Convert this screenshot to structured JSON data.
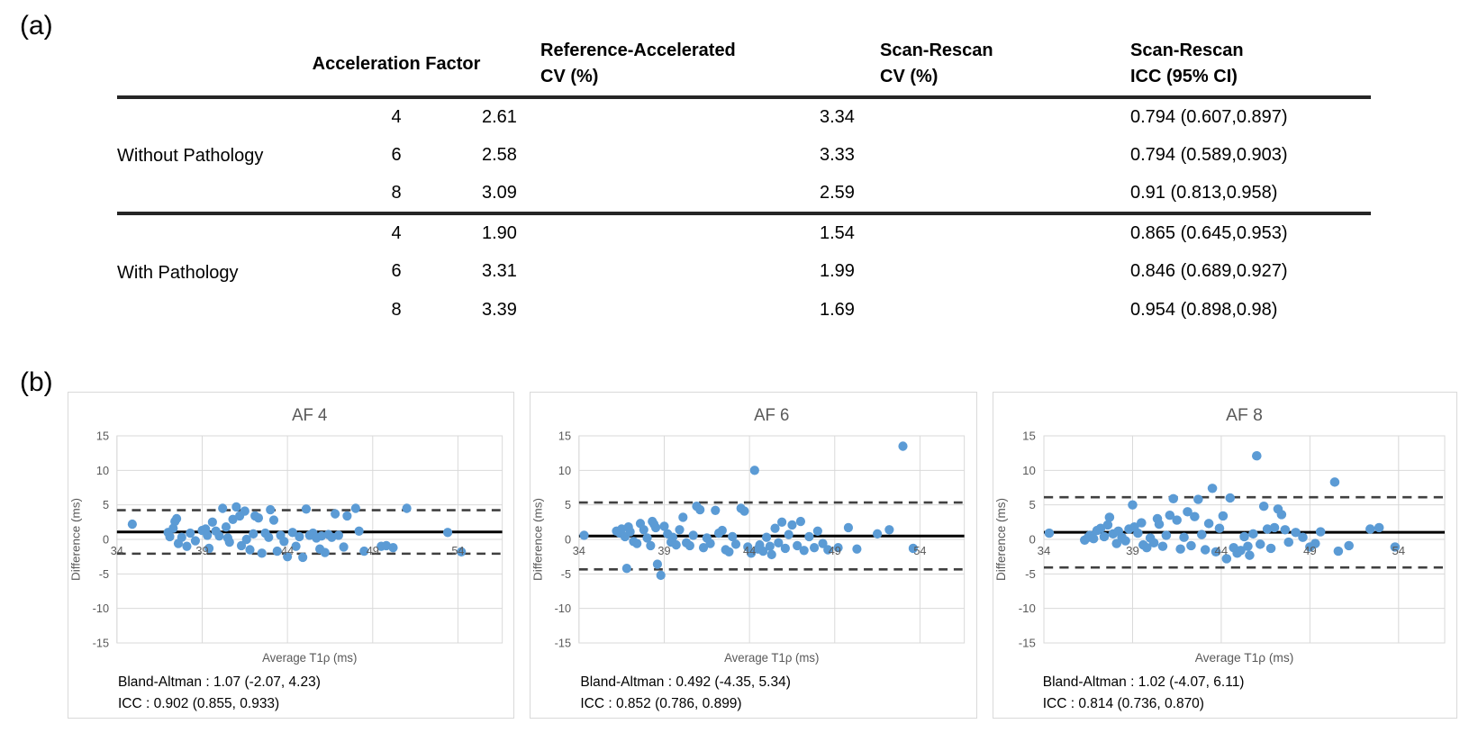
{
  "figure": {
    "panel_a_label": "(a)",
    "panel_b_label": "(b)"
  },
  "colors": {
    "marker": "#5b9bd5",
    "mean_line": "#000000",
    "loa_line": "#404040",
    "grid": "#d9d9d9",
    "axis_text": "#595959",
    "table_rule": "#262626",
    "panel_border": "#d9d9d9"
  },
  "table": {
    "columns": [
      {
        "line1": "Acceleration Factor",
        "line2": ""
      },
      {
        "line1": "Reference-Accelerated",
        "line2": "CV (%)"
      },
      {
        "line1": "Scan-Rescan",
        "line2": "CV (%)"
      },
      {
        "line1": "Scan-Rescan",
        "line2": "ICC (95% CI)"
      }
    ],
    "groups": [
      {
        "label": "Without Pathology",
        "rows": [
          {
            "af": "4",
            "ref_cv": "2.61",
            "sr_cv": "3.34",
            "icc": "0.794 (0.607,0.897)"
          },
          {
            "af": "6",
            "ref_cv": "2.58",
            "sr_cv": "3.33",
            "icc": "0.794 (0.589,0.903)"
          },
          {
            "af": "8",
            "ref_cv": "3.09",
            "sr_cv": "2.59",
            "icc": "0.91 (0.813,0.958)"
          }
        ]
      },
      {
        "label": "With Pathology",
        "rows": [
          {
            "af": "4",
            "ref_cv": "1.90",
            "sr_cv": "1.54",
            "icc": "0.865 (0.645,0.953)"
          },
          {
            "af": "6",
            "ref_cv": "3.31",
            "sr_cv": "1.99",
            "icc": "0.846 (0.689,0.927)"
          },
          {
            "af": "8",
            "ref_cv": "3.39",
            "sr_cv": "1.69",
            "icc": "0.954 (0.898,0.98)"
          }
        ]
      }
    ]
  },
  "chart_data": [
    {
      "type": "scatter",
      "title": "AF 4",
      "xlabel": "Average T1ρ (ms)",
      "ylabel": "Difference (ms)",
      "xlim": [
        34,
        56.6
      ],
      "ylim": [
        -15,
        15
      ],
      "xticks": [
        34,
        39,
        44,
        49,
        54
      ],
      "yticks": [
        15,
        10,
        5,
        0,
        -5,
        -10,
        -15
      ],
      "grid": true,
      "mean_line": 1.07,
      "loa_upper": 4.23,
      "loa_lower": -2.07,
      "annotation_line1": "Bland-Altman : 1.07 (-2.07, 4.23)",
      "annotation_line2": "ICC : 0.902 (0.855, 0.933)",
      "points": [
        [
          34.9,
          2.2
        ],
        [
          37.0,
          1.0
        ],
        [
          37.1,
          0.4
        ],
        [
          37.3,
          1.6
        ],
        [
          37.4,
          2.6
        ],
        [
          37.5,
          3.0
        ],
        [
          37.6,
          -0.6
        ],
        [
          37.8,
          0.3
        ],
        [
          38.1,
          -1.0
        ],
        [
          38.3,
          0.9
        ],
        [
          38.6,
          -0.2
        ],
        [
          39.0,
          1.3
        ],
        [
          39.2,
          1.5
        ],
        [
          39.3,
          0.6
        ],
        [
          39.4,
          -1.3
        ],
        [
          39.6,
          2.5
        ],
        [
          39.8,
          1.2
        ],
        [
          40.0,
          0.5
        ],
        [
          40.2,
          4.5
        ],
        [
          40.4,
          1.8
        ],
        [
          40.5,
          0.2
        ],
        [
          40.6,
          -0.4
        ],
        [
          40.8,
          2.9
        ],
        [
          41.0,
          4.7
        ],
        [
          41.2,
          3.4
        ],
        [
          41.3,
          -0.9
        ],
        [
          41.5,
          4.1
        ],
        [
          41.6,
          0.0
        ],
        [
          41.8,
          -1.5
        ],
        [
          42.0,
          0.8
        ],
        [
          42.1,
          3.4
        ],
        [
          42.3,
          3.1
        ],
        [
          42.5,
          -2.0
        ],
        [
          42.7,
          0.9
        ],
        [
          42.9,
          0.3
        ],
        [
          43.0,
          4.3
        ],
        [
          43.2,
          2.8
        ],
        [
          43.4,
          -1.7
        ],
        [
          43.6,
          0.6
        ],
        [
          43.8,
          -0.3
        ],
        [
          44.0,
          -2.5
        ],
        [
          44.3,
          1.0
        ],
        [
          44.5,
          -1.0
        ],
        [
          44.7,
          0.4
        ],
        [
          44.9,
          -2.6
        ],
        [
          45.1,
          4.4
        ],
        [
          45.3,
          0.6
        ],
        [
          45.5,
          0.9
        ],
        [
          45.7,
          0.2
        ],
        [
          45.9,
          -1.4
        ],
        [
          46.0,
          0.5
        ],
        [
          46.2,
          -1.9
        ],
        [
          46.4,
          0.7
        ],
        [
          46.6,
          0.3
        ],
        [
          46.8,
          3.7
        ],
        [
          47.0,
          0.6
        ],
        [
          47.3,
          -1.1
        ],
        [
          47.5,
          3.4
        ],
        [
          48.0,
          4.5
        ],
        [
          48.2,
          1.2
        ],
        [
          48.5,
          -1.7
        ],
        [
          49.5,
          -1.0
        ],
        [
          49.8,
          -0.9
        ],
        [
          50.2,
          -1.2
        ],
        [
          51.0,
          4.5
        ],
        [
          53.4,
          1.0
        ],
        [
          54.2,
          -1.8
        ]
      ]
    },
    {
      "type": "scatter",
      "title": "AF 6",
      "xlabel": "Average T1ρ (ms)",
      "ylabel": "Difference (ms)",
      "xlim": [
        34,
        56.6
      ],
      "ylim": [
        -15,
        15
      ],
      "xticks": [
        34,
        39,
        44,
        49,
        54
      ],
      "yticks": [
        15,
        10,
        5,
        0,
        -5,
        -10,
        -15
      ],
      "grid": true,
      "mean_line": 0.492,
      "loa_upper": 5.34,
      "loa_lower": -4.35,
      "annotation_line1": "Bland-Altman : 0.492 (-4.35, 5.34)",
      "annotation_line2": "ICC : 0.852 (0.786, 0.899)",
      "points": [
        [
          34.3,
          0.6
        ],
        [
          36.2,
          1.2
        ],
        [
          36.4,
          0.9
        ],
        [
          36.5,
          1.5
        ],
        [
          36.7,
          0.4
        ],
        [
          36.8,
          -4.2
        ],
        [
          36.9,
          1.8
        ],
        [
          37.0,
          1.1
        ],
        [
          37.2,
          -0.3
        ],
        [
          37.4,
          -0.6
        ],
        [
          37.6,
          2.3
        ],
        [
          37.8,
          1.4
        ],
        [
          38.0,
          0.2
        ],
        [
          38.2,
          -0.9
        ],
        [
          38.3,
          2.6
        ],
        [
          38.4,
          2.2
        ],
        [
          38.5,
          1.7
        ],
        [
          38.6,
          -3.6
        ],
        [
          38.8,
          -5.2
        ],
        [
          39.0,
          1.9
        ],
        [
          39.2,
          0.8
        ],
        [
          39.4,
          -0.4
        ],
        [
          39.5,
          0.3
        ],
        [
          39.7,
          -0.8
        ],
        [
          39.9,
          1.4
        ],
        [
          40.1,
          3.2
        ],
        [
          40.3,
          -0.5
        ],
        [
          40.5,
          -0.9
        ],
        [
          40.7,
          0.6
        ],
        [
          40.9,
          4.8
        ],
        [
          41.1,
          4.3
        ],
        [
          41.3,
          -1.2
        ],
        [
          41.5,
          0.2
        ],
        [
          41.7,
          -0.6
        ],
        [
          42.0,
          4.2
        ],
        [
          42.2,
          0.9
        ],
        [
          42.4,
          1.3
        ],
        [
          42.6,
          -1.5
        ],
        [
          42.8,
          -1.8
        ],
        [
          43.0,
          0.4
        ],
        [
          43.2,
          -0.7
        ],
        [
          43.5,
          4.5
        ],
        [
          43.7,
          4.1
        ],
        [
          43.9,
          -1.1
        ],
        [
          44.1,
          -2.0
        ],
        [
          44.3,
          10.0
        ],
        [
          44.5,
          -1.4
        ],
        [
          44.6,
          -0.8
        ],
        [
          44.8,
          -1.7
        ],
        [
          45.0,
          0.3
        ],
        [
          45.2,
          -1.0
        ],
        [
          45.3,
          -2.2
        ],
        [
          45.5,
          1.6
        ],
        [
          45.7,
          -0.5
        ],
        [
          45.9,
          2.5
        ],
        [
          46.1,
          -1.3
        ],
        [
          46.3,
          0.7
        ],
        [
          46.5,
          2.1
        ],
        [
          46.8,
          -0.9
        ],
        [
          47.0,
          2.6
        ],
        [
          47.2,
          -1.6
        ],
        [
          47.5,
          0.4
        ],
        [
          47.8,
          -1.2
        ],
        [
          48.0,
          1.2
        ],
        [
          48.3,
          -0.6
        ],
        [
          48.6,
          -1.5
        ],
        [
          49.2,
          -1.2
        ],
        [
          49.8,
          1.7
        ],
        [
          50.3,
          -1.4
        ],
        [
          51.5,
          0.8
        ],
        [
          52.2,
          1.4
        ],
        [
          53.0,
          13.5
        ],
        [
          53.6,
          -1.3
        ]
      ]
    },
    {
      "type": "scatter",
      "title": "AF 8",
      "xlabel": "Average T1ρ (ms)",
      "ylabel": "Difference (ms)",
      "xlim": [
        34,
        56.6
      ],
      "ylim": [
        -15,
        15
      ],
      "xticks": [
        34,
        39,
        44,
        49,
        54
      ],
      "yticks": [
        15,
        10,
        5,
        0,
        -5,
        -10,
        -15
      ],
      "grid": true,
      "mean_line": 1.02,
      "loa_upper": 6.11,
      "loa_lower": -4.07,
      "annotation_line1": "Bland-Altman : 1.02 (-4.07, 6.11)",
      "annotation_line2": "ICC : 0.814 (0.736, 0.870)",
      "points": [
        [
          34.3,
          0.9
        ],
        [
          36.3,
          -0.1
        ],
        [
          36.5,
          0.3
        ],
        [
          36.6,
          0.6
        ],
        [
          36.8,
          0.1
        ],
        [
          37.0,
          1.3
        ],
        [
          37.2,
          1.6
        ],
        [
          37.4,
          0.4
        ],
        [
          37.6,
          2.1
        ],
        [
          37.7,
          3.2
        ],
        [
          37.9,
          0.8
        ],
        [
          38.1,
          -0.6
        ],
        [
          38.2,
          1.2
        ],
        [
          38.4,
          0.3
        ],
        [
          38.6,
          -0.2
        ],
        [
          38.8,
          1.5
        ],
        [
          39.0,
          5.0
        ],
        [
          39.1,
          1.8
        ],
        [
          39.3,
          0.9
        ],
        [
          39.5,
          2.4
        ],
        [
          39.6,
          -0.8
        ],
        [
          39.8,
          -1.2
        ],
        [
          40.0,
          0.2
        ],
        [
          40.2,
          -0.5
        ],
        [
          40.4,
          3.0
        ],
        [
          40.5,
          2.2
        ],
        [
          40.7,
          -1.0
        ],
        [
          40.9,
          0.6
        ],
        [
          41.1,
          3.5
        ],
        [
          41.3,
          5.9
        ],
        [
          41.5,
          2.8
        ],
        [
          41.7,
          -1.4
        ],
        [
          41.9,
          0.3
        ],
        [
          42.1,
          4.0
        ],
        [
          42.3,
          -0.9
        ],
        [
          42.5,
          3.3
        ],
        [
          42.7,
          5.8
        ],
        [
          42.9,
          0.7
        ],
        [
          43.1,
          -1.5
        ],
        [
          43.3,
          2.3
        ],
        [
          43.5,
          7.4
        ],
        [
          43.7,
          -1.8
        ],
        [
          43.9,
          1.6
        ],
        [
          44.1,
          3.4
        ],
        [
          44.3,
          -2.8
        ],
        [
          44.5,
          6.0
        ],
        [
          44.7,
          -1.2
        ],
        [
          44.9,
          -2.0
        ],
        [
          45.1,
          -1.6
        ],
        [
          45.3,
          0.4
        ],
        [
          45.5,
          -1.0
        ],
        [
          45.6,
          -2.3
        ],
        [
          45.8,
          0.8
        ],
        [
          46.0,
          12.1
        ],
        [
          46.2,
          -0.7
        ],
        [
          46.4,
          4.8
        ],
        [
          46.6,
          1.5
        ],
        [
          46.8,
          -1.3
        ],
        [
          47.0,
          1.7
        ],
        [
          47.2,
          4.4
        ],
        [
          47.4,
          3.6
        ],
        [
          47.6,
          1.4
        ],
        [
          47.8,
          -0.4
        ],
        [
          48.2,
          1.0
        ],
        [
          48.6,
          0.3
        ],
        [
          49.0,
          -1.1
        ],
        [
          49.3,
          -0.6
        ],
        [
          49.6,
          1.1
        ],
        [
          50.4,
          8.3
        ],
        [
          50.6,
          -1.7
        ],
        [
          51.2,
          -0.9
        ],
        [
          52.4,
          1.5
        ],
        [
          52.9,
          1.7
        ],
        [
          53.8,
          -1.1
        ]
      ]
    }
  ]
}
